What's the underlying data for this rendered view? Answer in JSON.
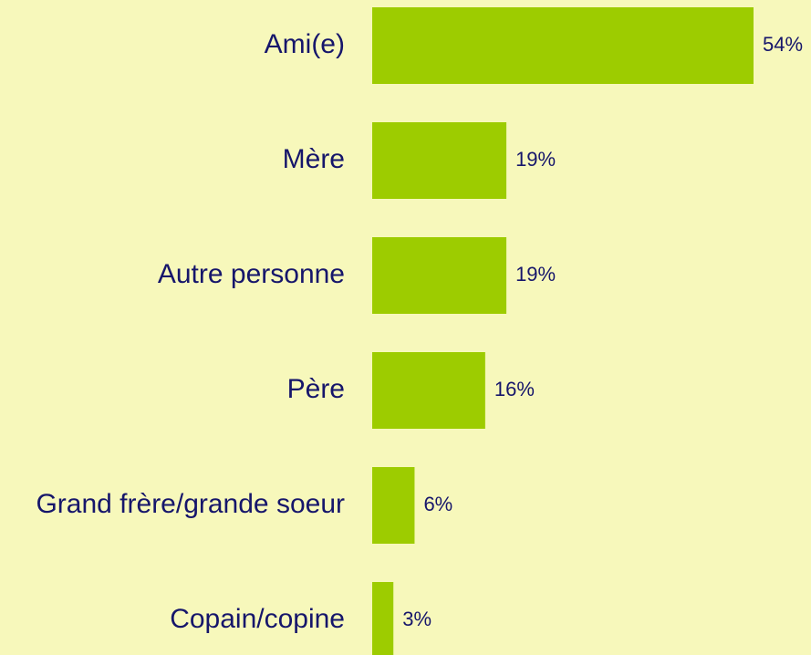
{
  "chart_data": {
    "type": "bar",
    "orientation": "horizontal",
    "categories": [
      "Ami(e)",
      "Mère",
      "Autre personne",
      "Père",
      "Grand frère/grande soeur",
      "Copain/copine"
    ],
    "values": [
      54,
      19,
      19,
      16,
      6,
      3
    ],
    "value_labels": [
      "54%",
      "19%",
      "19%",
      "16%",
      "6%",
      "3%"
    ],
    "color": "#9dcc00"
  }
}
